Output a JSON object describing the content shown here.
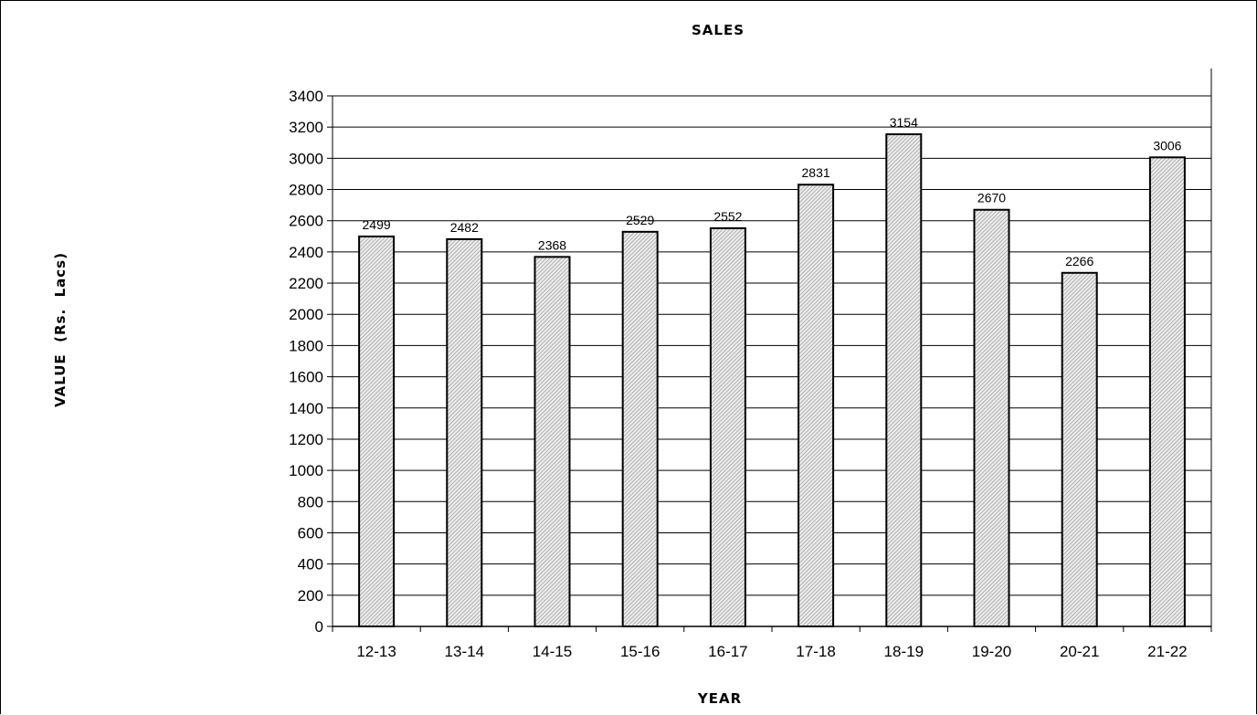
{
  "chart_data": {
    "type": "bar",
    "title": "SALES",
    "xlabel": "YEAR",
    "ylabel": "VALUE  (Rs.  Lacs)",
    "categories": [
      "12-13",
      "13-14",
      "14-15",
      "15-16",
      "16-17",
      "17-18",
      "18-19",
      "19-20",
      "20-21",
      "21-22"
    ],
    "values": [
      2499,
      2482,
      2368,
      2529,
      2552,
      2831,
      3154,
      2670,
      2266,
      3006
    ],
    "data_labels": [
      "2499",
      "2482",
      "2368",
      "2529",
      "2552",
      "2831",
      "3154",
      "2670",
      "2266",
      "3006"
    ],
    "ylim": [
      0,
      3400
    ],
    "ytick_step": 200,
    "yticks": [
      "0",
      "200",
      "400",
      "600",
      "800",
      "1000",
      "1200",
      "1400",
      "1600",
      "1800",
      "2000",
      "2200",
      "2400",
      "2600",
      "2800",
      "3000",
      "3200",
      "3400"
    ],
    "grid": true,
    "legend": "none",
    "bar_fill": "#d9d9d9",
    "bar_stroke": "#000000"
  }
}
